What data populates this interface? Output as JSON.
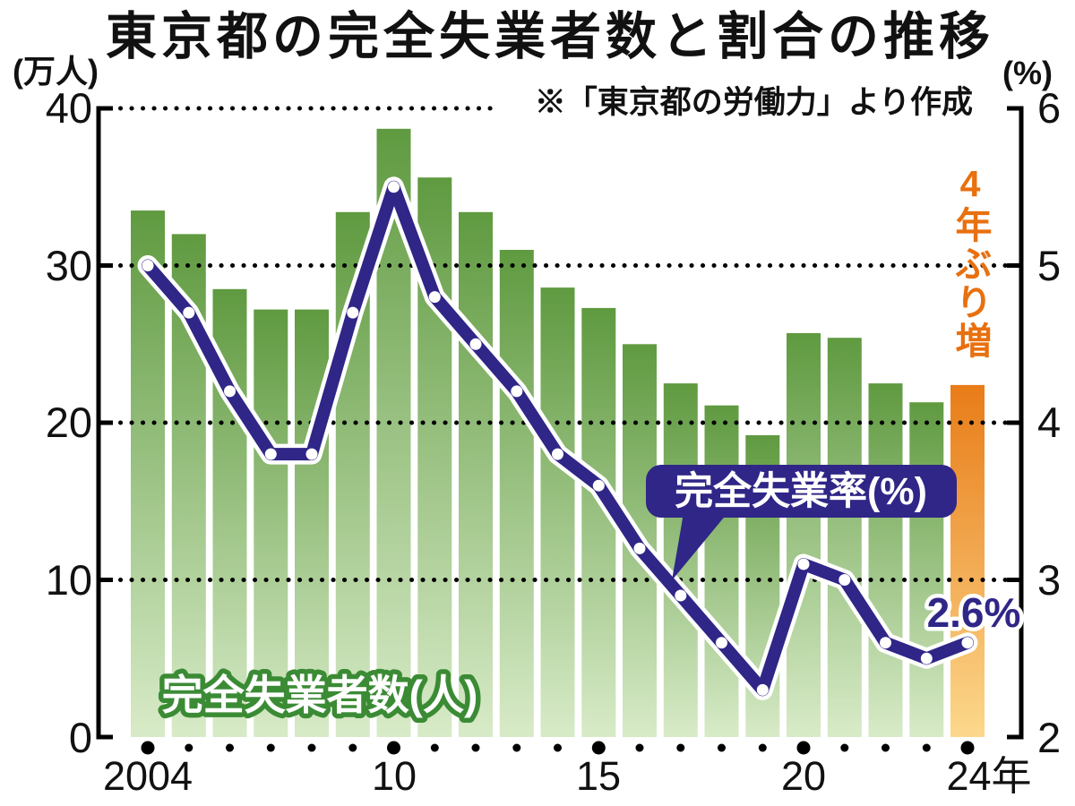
{
  "title": "東京都の完全失業者数と割合の推移",
  "source_note": "※「東京都の労働力」より作成",
  "axes": {
    "left_unit": "(万人)",
    "right_unit": "(%)",
    "left_ticks": [
      "40",
      "30",
      "20",
      "10",
      "0"
    ],
    "right_ticks": [
      "6",
      "5",
      "4",
      "3",
      "2"
    ],
    "x_ticks": [
      "2004",
      "10",
      "15",
      "20",
      "24年"
    ]
  },
  "labels": {
    "bar_series": "完全失業者数(人)",
    "line_series": "完全失業率(%)",
    "last_rate": "2.6%",
    "highlight": "4年ぶり増"
  },
  "colors": {
    "bar_green_top": "#5f9a40",
    "bar_green_bottom": "#d8ebc8",
    "bar_orange_top": "#e87c18",
    "bar_orange_bottom": "#fcd88c",
    "line_indigo": "#2f2687",
    "highlight_orange": "#e8700f",
    "bar_label_outline_green": "#3b8b35"
  },
  "chart_data": {
    "type": "combo_bar_line",
    "title": "東京都の完全失業者数と割合の推移",
    "source": "※「東京都の労働力」より作成",
    "x": [
      2004,
      2005,
      2006,
      2007,
      2008,
      2009,
      2010,
      2011,
      2012,
      2013,
      2014,
      2015,
      2016,
      2017,
      2018,
      2019,
      2020,
      2021,
      2022,
      2023,
      2024
    ],
    "x_axis": {
      "labeled_years": [
        2004,
        2010,
        2015,
        2020,
        2024
      ],
      "tick_labels": [
        "2004",
        "10",
        "15",
        "20",
        "24年"
      ]
    },
    "left_axis": {
      "unit": "万人",
      "min": 0,
      "max": 40,
      "ticks": [
        40,
        30,
        20,
        10,
        0
      ]
    },
    "right_axis": {
      "unit": "%",
      "min": 2,
      "max": 6,
      "ticks": [
        6,
        5,
        4,
        3,
        2
      ]
    },
    "grid": "dotted horizontal lines at 10/20/30/40 (left) = 3/4/5/6 (right)",
    "series": [
      {
        "name": "完全失業者数(人)",
        "type": "bar",
        "axis": "left",
        "values": [
          33.5,
          32.0,
          28.5,
          27.2,
          27.2,
          33.4,
          38.7,
          35.6,
          33.4,
          31.0,
          28.6,
          27.3,
          25.0,
          22.5,
          21.1,
          19.2,
          25.7,
          25.4,
          22.5,
          21.3,
          22.4
        ],
        "highlight_last_bar": true
      },
      {
        "name": "完全失業率(%)",
        "type": "line",
        "axis": "right",
        "values": [
          5.0,
          4.7,
          4.2,
          3.8,
          3.8,
          4.7,
          5.5,
          4.8,
          4.5,
          4.2,
          3.8,
          3.6,
          3.2,
          2.9,
          2.6,
          2.3,
          3.1,
          3.0,
          2.6,
          2.5,
          2.6
        ]
      }
    ],
    "annotations": {
      "last_rate_label": "2.6%",
      "highlight_label": "4年ぶり増"
    }
  }
}
